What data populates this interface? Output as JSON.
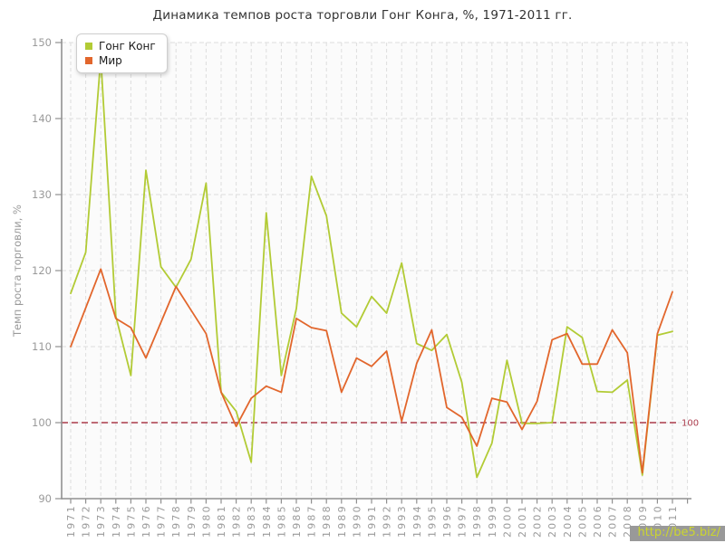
{
  "chart_data": {
    "type": "line",
    "title": "Динамика темпов роста торговли Гонг Конга, %, 1971-2011 гг.",
    "ylabel": "Темп роста торговли, %",
    "ylim": [
      90,
      150
    ],
    "yticks": [
      90,
      100,
      110,
      120,
      130,
      140,
      150
    ],
    "grid": true,
    "legend_position": "top-left",
    "x": [
      1971,
      1972,
      1973,
      1974,
      1975,
      1976,
      1977,
      1978,
      1979,
      1980,
      1981,
      1982,
      1983,
      1984,
      1985,
      1986,
      1987,
      1988,
      1989,
      1990,
      1991,
      1992,
      1993,
      1994,
      1995,
      1996,
      1997,
      1998,
      1999,
      2000,
      2001,
      2002,
      2003,
      2004,
      2005,
      2006,
      2007,
      2008,
      2009,
      2010,
      2011
    ],
    "series": [
      {
        "name": "Гонг Конг",
        "color": "#b2cb35",
        "values": [
          117,
          122.4,
          148,
          114,
          106.2,
          133.2,
          120.5,
          117.8,
          121.5,
          131.5,
          104,
          101.5,
          94.8,
          127.6,
          106.2,
          115,
          132.4,
          127.2,
          114.4,
          112.6,
          116.6,
          114.4,
          121,
          110.4,
          109.5,
          111.6,
          105.3,
          92.8,
          97.3,
          108.2,
          99.9,
          99.9,
          100,
          112.6,
          111.2,
          104.1,
          104,
          105.6,
          93.1,
          111.5,
          112
        ]
      },
      {
        "name": "Мир",
        "color": "#e2662c",
        "values": [
          110,
          115.1,
          120.2,
          113.7,
          112.5,
          108.5,
          113.2,
          117.9,
          114.8,
          111.7,
          104,
          99.5,
          103.2,
          104.8,
          104,
          113.7,
          112.5,
          112.1,
          104,
          108.5,
          107.4,
          109.4,
          100.2,
          107.8,
          112.2,
          102,
          100.7,
          96.9,
          103.2,
          102.7,
          99.1,
          102.8,
          110.9,
          111.7,
          107.7,
          107.7,
          112.2,
          109.2,
          93.4,
          111.7,
          117.2
        ]
      }
    ],
    "reference_line": {
      "value": 100,
      "label": "100",
      "color": "#aa3b4b"
    }
  },
  "watermark": {
    "text": "http://be5.biz/"
  }
}
